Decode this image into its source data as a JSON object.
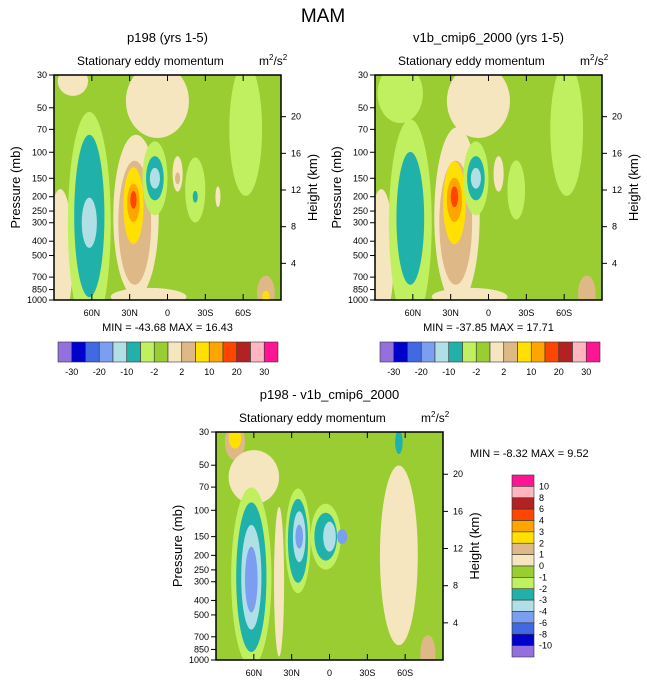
{
  "title": "MAM",
  "chart_data": [
    {
      "type": "heatmap",
      "title": "p198 (yrs 1-5)",
      "subtitle": "Stationary eddy momentum",
      "units": "m2/s2",
      "xlabel": "",
      "ylabel": "Pressure (mb)",
      "ylabel_right": "Height (km)",
      "xticks": [
        "60N",
        "30N",
        "0",
        "30S",
        "60S"
      ],
      "yticks": [
        "30",
        "50",
        "70",
        "100",
        "150",
        "200",
        "250",
        "300",
        "400",
        "500",
        "700",
        "850",
        "1000"
      ],
      "yticks_right": [
        "4",
        "8",
        "12",
        "16",
        "20"
      ],
      "stats": "MIN = -43.68  MAX =  16.43",
      "features": [
        [
          75,
          33,
          12,
          0.1,
          8
        ],
        [
          8,
          45,
          25,
          0.25,
          8
        ],
        [
          85,
          500,
          10,
          0.45,
          8
        ],
        [
          -62,
          70,
          13,
          0.45,
          6
        ],
        [
          62,
          300,
          17,
          0.75,
          6
        ],
        [
          62,
          270,
          12,
          0.55,
          5
        ],
        [
          62,
          300,
          6,
          0.17,
          4
        ],
        [
          25,
          270,
          18,
          0.55,
          8
        ],
        [
          26,
          300,
          13,
          0.42,
          9
        ],
        [
          27,
          230,
          8,
          0.26,
          10
        ],
        [
          27,
          220,
          5,
          0.13,
          11
        ],
        [
          27,
          210,
          2.5,
          0.06,
          12
        ],
        [
          10,
          150,
          10,
          0.25,
          6
        ],
        [
          10,
          150,
          7,
          0.15,
          5
        ],
        [
          10,
          150,
          4,
          0.07,
          4
        ],
        [
          -8,
          140,
          4,
          0.12,
          8
        ],
        [
          -8,
          150,
          2,
          0.04,
          9
        ],
        [
          -22,
          180,
          8,
          0.22,
          6
        ],
        [
          -22,
          200,
          2,
          0.04,
          5
        ],
        [
          -40,
          200,
          2,
          0.07,
          8
        ],
        [
          15,
          950,
          30,
          0.06,
          8
        ],
        [
          -78,
          900,
          7,
          0.12,
          9
        ],
        [
          -78,
          950,
          3,
          0.04,
          10
        ]
      ]
    },
    {
      "type": "heatmap",
      "title": "v1b_cmip6_2000 (yrs 1-5)",
      "subtitle": "Stationary eddy momentum",
      "units": "m2/s2",
      "xlabel": "",
      "ylabel": "Pressure (mb)",
      "ylabel_right": "Height (km)",
      "xticks": [
        "60N",
        "30N",
        "0",
        "30S",
        "60S"
      ],
      "yticks": [
        "30",
        "50",
        "70",
        "100",
        "150",
        "200",
        "250",
        "300",
        "400",
        "500",
        "700",
        "850",
        "1000"
      ],
      "yticks_right": [
        "4",
        "8",
        "12",
        "16",
        "20"
      ],
      "stats": "MIN = -37.85  MAX =  17.71",
      "features": [
        [
          70,
          40,
          18,
          0.2,
          6
        ],
        [
          8,
          45,
          25,
          0.25,
          8
        ],
        [
          85,
          500,
          10,
          0.45,
          8
        ],
        [
          -62,
          70,
          13,
          0.45,
          6
        ],
        [
          62,
          300,
          17,
          0.7,
          6
        ],
        [
          62,
          280,
          11,
          0.45,
          5
        ],
        [
          25,
          270,
          18,
          0.6,
          8
        ],
        [
          26,
          300,
          13,
          0.42,
          9
        ],
        [
          27,
          220,
          9,
          0.28,
          10
        ],
        [
          27,
          210,
          6,
          0.15,
          11
        ],
        [
          27,
          200,
          3,
          0.07,
          12
        ],
        [
          10,
          150,
          10,
          0.25,
          6
        ],
        [
          10,
          150,
          7,
          0.15,
          5
        ],
        [
          10,
          150,
          4,
          0.07,
          4
        ],
        [
          -8,
          140,
          4,
          0.12,
          8
        ],
        [
          -22,
          180,
          7,
          0.2,
          6
        ],
        [
          15,
          950,
          30,
          0.06,
          8
        ],
        [
          -78,
          900,
          7,
          0.12,
          9
        ]
      ]
    },
    {
      "type": "heatmap",
      "title": "p198 - v1b_cmip6_2000",
      "subtitle": "Stationary eddy momentum",
      "units": "m2/s2",
      "xlabel": "",
      "ylabel": "Pressure (mb)",
      "ylabel_right": "Height (km)",
      "xticks": [
        "60N",
        "30N",
        "0",
        "30S",
        "60S"
      ],
      "yticks": [
        "30",
        "50",
        "70",
        "100",
        "150",
        "200",
        "250",
        "300",
        "400",
        "500",
        "700",
        "850",
        "1000"
      ],
      "yticks_right": [
        "4",
        "8",
        "12",
        "16",
        "20"
      ],
      "stats": "MIN =  -8.32  MAX =   9.52",
      "features": [
        [
          75,
          35,
          8,
          0.12,
          9
        ],
        [
          75,
          33,
          5,
          0.07,
          10
        ],
        [
          60,
          60,
          20,
          0.18,
          8
        ],
        [
          -55,
          200,
          15,
          0.6,
          8
        ],
        [
          62,
          280,
          16,
          0.6,
          6
        ],
        [
          62,
          280,
          12,
          0.5,
          5
        ],
        [
          62,
          280,
          8,
          0.35,
          4
        ],
        [
          62,
          290,
          5,
          0.22,
          3
        ],
        [
          40,
          300,
          4,
          0.5,
          8
        ],
        [
          25,
          160,
          10,
          0.35,
          6
        ],
        [
          25,
          160,
          8,
          0.28,
          5
        ],
        [
          24,
          150,
          5,
          0.17,
          4
        ],
        [
          24,
          150,
          3,
          0.08,
          3
        ],
        [
          3,
          150,
          12,
          0.22,
          6
        ],
        [
          3,
          150,
          9,
          0.16,
          5
        ],
        [
          0,
          150,
          5,
          0.1,
          4
        ],
        [
          -10,
          150,
          4,
          0.05,
          3
        ],
        [
          -55,
          35,
          3,
          0.08,
          5
        ],
        [
          -78,
          900,
          6,
          0.12,
          9
        ]
      ]
    }
  ],
  "colorbar_top": {
    "colors": [
      "#9370db",
      "#0000cd",
      "#4169e1",
      "#7b9ef0",
      "#b0e0e6",
      "#20b2aa",
      "#c0f060",
      "#9acd32",
      "#f5e6c0",
      "#deb887",
      "#ffe000",
      "#ffa500",
      "#ff4500",
      "#b22222",
      "#ffb6c1",
      "#ff1493"
    ],
    "labels": [
      "-30",
      "-20",
      "-10",
      "-2",
      "2",
      "10",
      "20",
      "30"
    ]
  },
  "colorbar_diff": {
    "labels": [
      "10",
      "8",
      "6",
      "4",
      "3",
      "2",
      "1",
      "0",
      "-1",
      "-2",
      "-3",
      "-4",
      "-6",
      "-8",
      "-10"
    ]
  }
}
